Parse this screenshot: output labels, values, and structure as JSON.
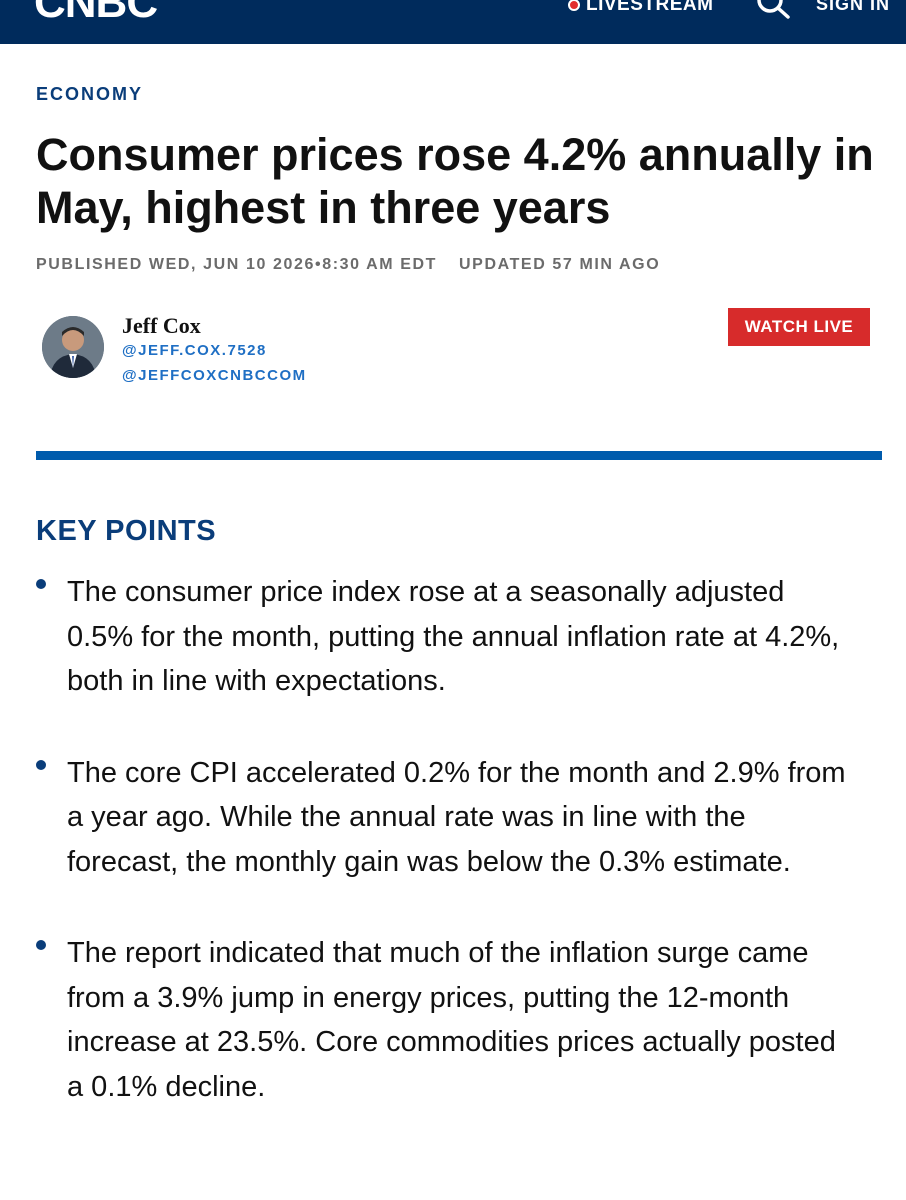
{
  "header": {
    "logo": "CNBC",
    "livestream_label": "LIVESTREAM",
    "search_icon": "search-icon",
    "signin_label": "SIGN IN",
    "background_color": "#002b5c"
  },
  "article": {
    "section": "ECONOMY",
    "headline": "Consumer prices rose 4.2% annually in May, highest in three years",
    "published": "PUBLISHED WED, JUN 10 2026•8:30 AM EDT",
    "updated": "UPDATED 57 MIN AGO",
    "author": {
      "name": "Jeff Cox",
      "handle_1": "@JEFF.COX.7528",
      "handle_2": "@JEFFCOXCNBCCOM"
    },
    "watch_live_label": "WATCH LIVE"
  },
  "key_points": {
    "title": "KEY POINTS",
    "items": [
      "The consumer price index rose at a seasonally adjusted 0.5% for the month, putting the annual inflation rate at 4.2%, both in line with expectations.",
      "The core CPI accelerated 0.2% for the month and 2.9% from a year ago. While the annual rate was in line with the forecast, the monthly gain was below the 0.3% estimate.",
      "The report indicated that much of the inflation surge came from a 3.9% jump in energy prices, putting the 12-month increase at 23.5%. Core commodities prices actually posted a 0.1% decline."
    ]
  },
  "colors": {
    "accent_blue": "#005bac",
    "section_blue": "#0a3d7a",
    "link_blue": "#1f6fc4",
    "live_red": "#d72b2b"
  }
}
